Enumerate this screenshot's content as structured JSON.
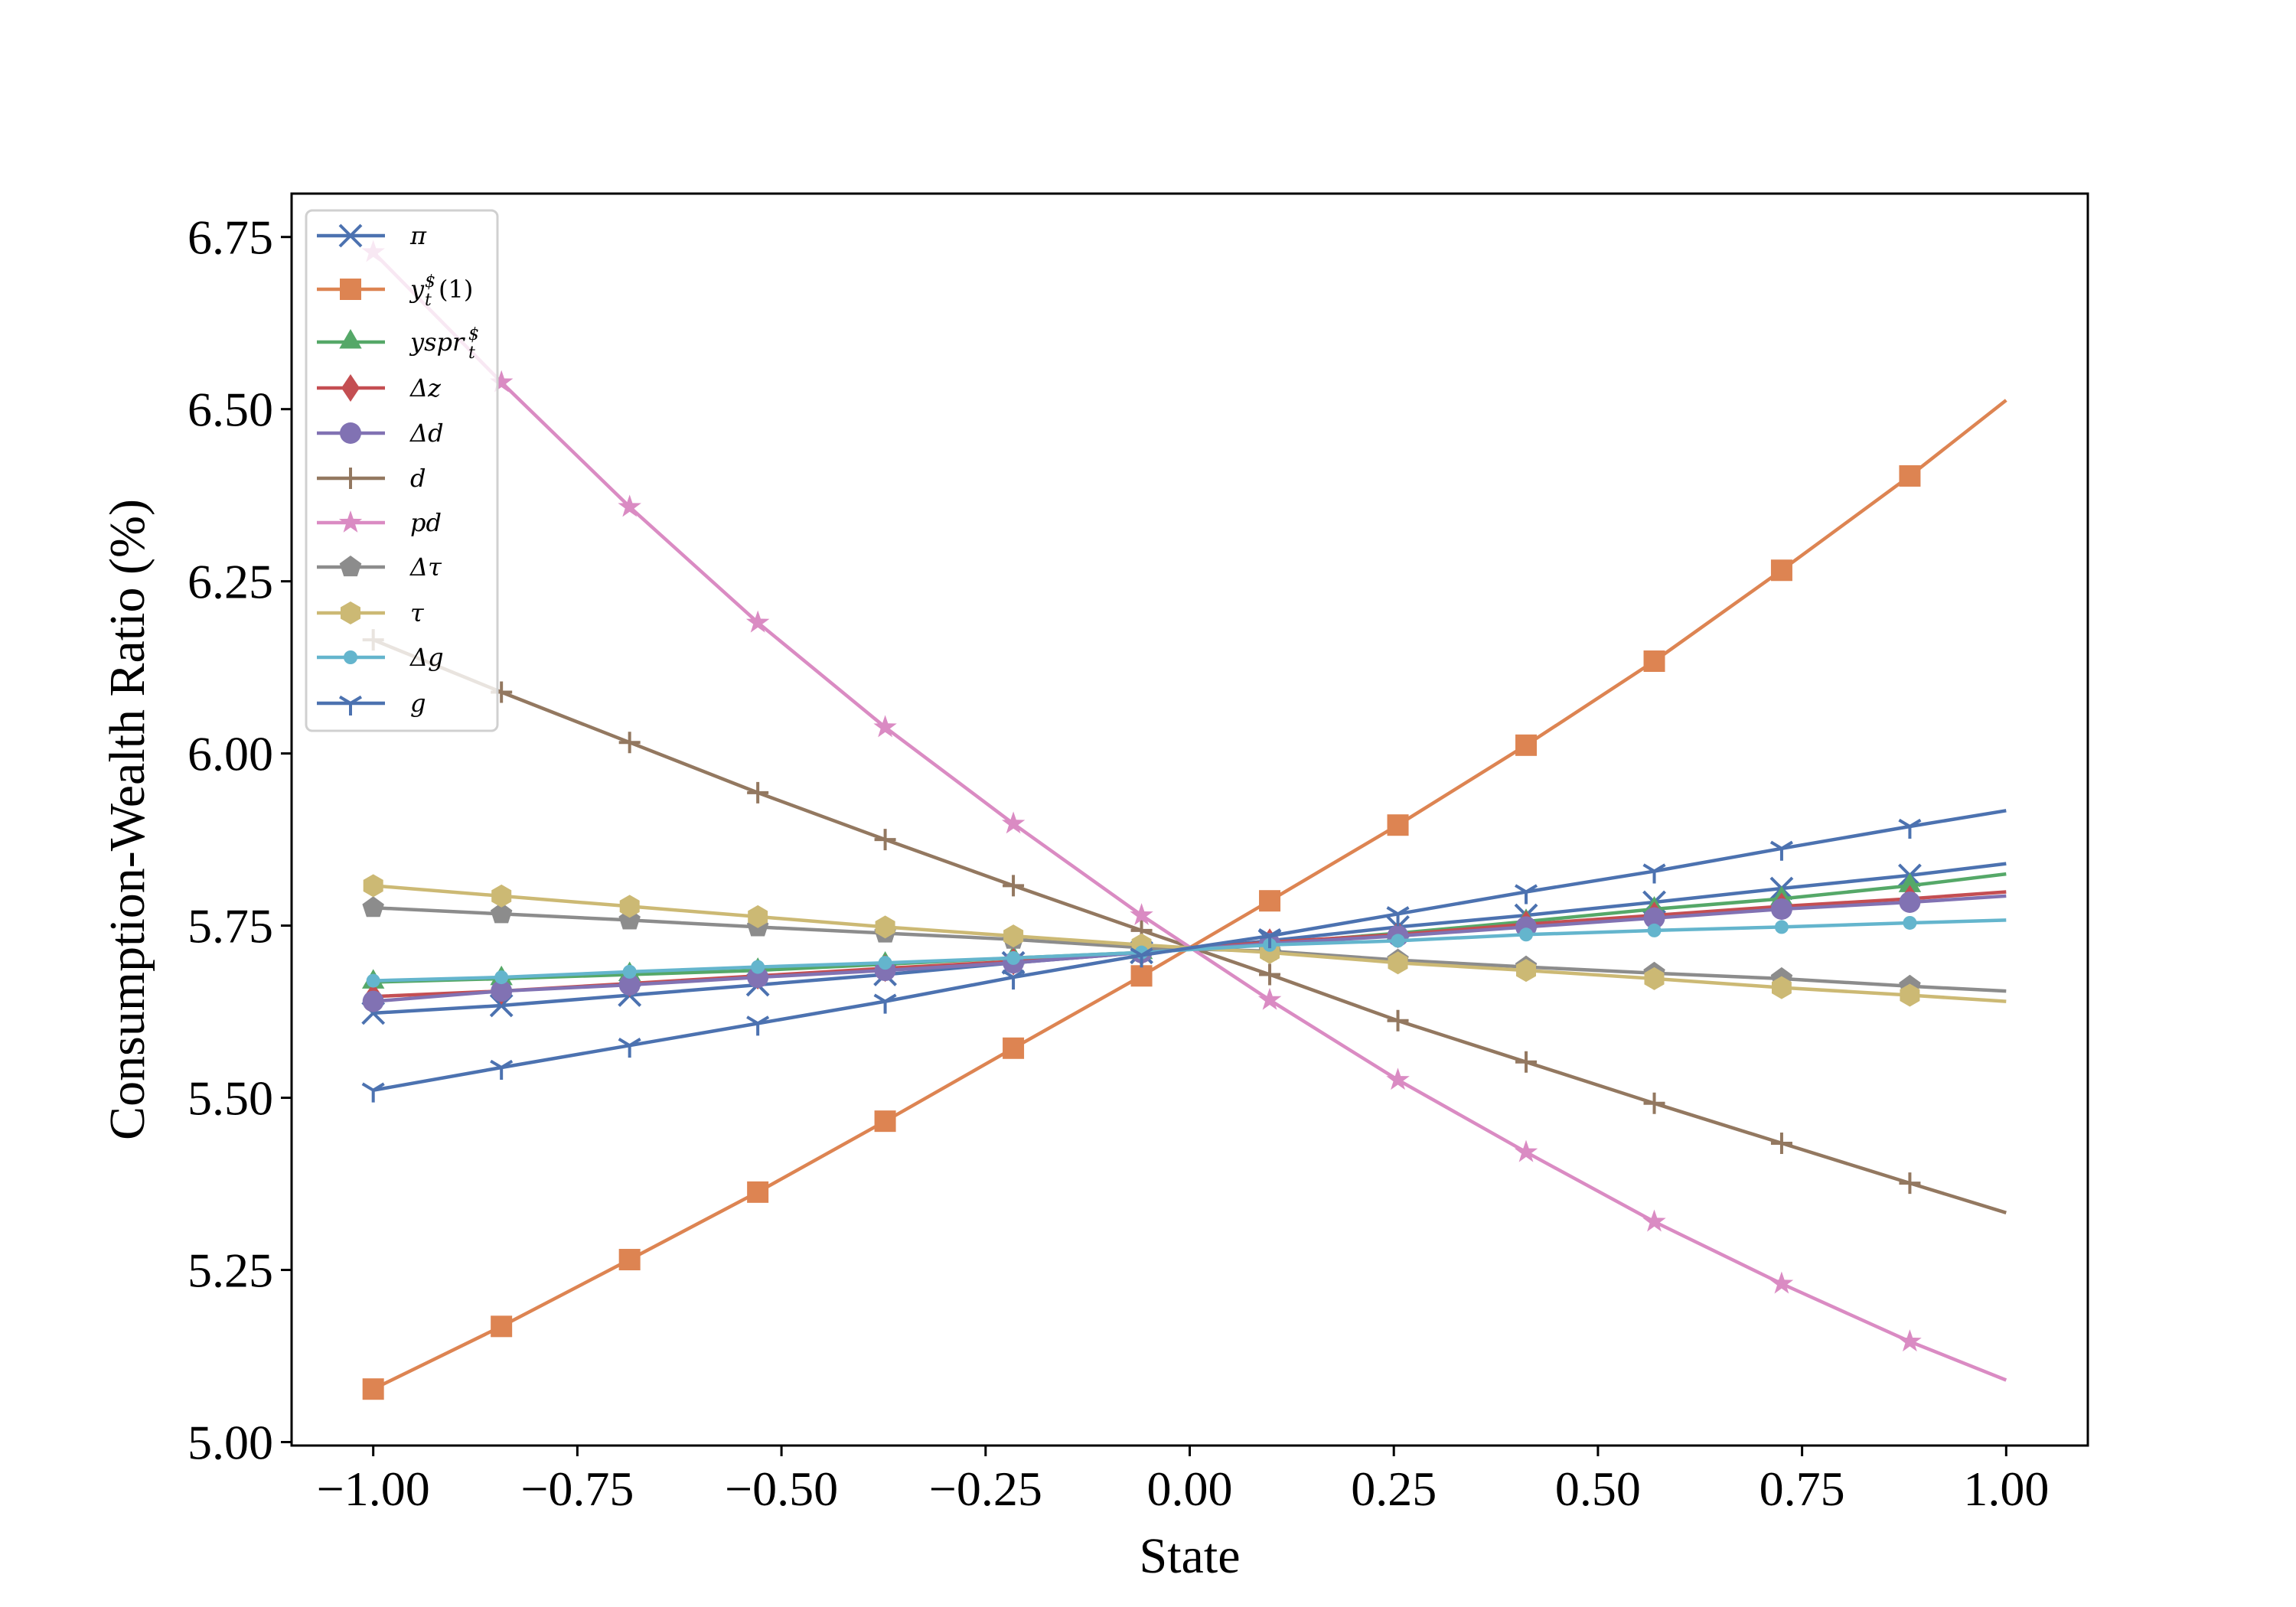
{
  "chart_data": {
    "type": "line",
    "title": "",
    "xlabel": "State",
    "ylabel": "Consumption-Wealth Ratio (%)",
    "xlim": [
      -1.1,
      1.1
    ],
    "ylim": [
      4.995,
      6.813
    ],
    "grid": false,
    "legend_position": "top-left",
    "xticks": [
      -1.0,
      -0.75,
      -0.5,
      -0.25,
      0.0,
      0.25,
      0.5,
      0.75,
      1.0
    ],
    "xtick_labels": [
      "−1.00",
      "−0.75",
      "−0.50",
      "−0.25",
      "0.00",
      "0.25",
      "0.50",
      "0.75",
      "1.00"
    ],
    "yticks": [
      5.0,
      5.25,
      5.5,
      5.75,
      6.0,
      6.25,
      6.5,
      6.75
    ],
    "ytick_labels": [
      "5.00",
      "5.25",
      "5.50",
      "5.75",
      "6.00",
      "6.25",
      "6.50",
      "6.75"
    ],
    "x": [
      -1.0,
      -0.843,
      -0.686,
      -0.529,
      -0.373,
      -0.216,
      -0.059,
      0.098,
      0.255,
      0.412,
      0.569,
      0.725,
      0.882,
      1.0
    ],
    "series": [
      {
        "name": "π",
        "label": {
          "base": "π"
        },
        "color": "#4c72b0",
        "marker": "x",
        "values": [
          5.623,
          5.634,
          5.649,
          5.664,
          5.679,
          5.696,
          5.711,
          5.728,
          5.748,
          5.765,
          5.784,
          5.804,
          5.823,
          5.84
        ]
      },
      {
        "name": "y_t^$(1)",
        "label": {
          "base": "y",
          "sub": "t",
          "sup": "$",
          "rest": "(1)"
        },
        "color": "#dd8452",
        "marker": "square",
        "values": [
          5.077,
          5.168,
          5.265,
          5.363,
          5.466,
          5.572,
          5.677,
          5.786,
          5.896,
          6.012,
          6.134,
          6.266,
          6.403,
          6.513
        ]
      },
      {
        "name": "yspr_t^$",
        "label": {
          "base": "yspr",
          "sub": "t",
          "sup": "$"
        },
        "color": "#55a868",
        "marker": "triangle",
        "values": [
          5.668,
          5.673,
          5.679,
          5.685,
          5.694,
          5.703,
          5.711,
          5.724,
          5.739,
          5.756,
          5.774,
          5.789,
          5.808,
          5.825
        ]
      },
      {
        "name": "Δz",
        "label": {
          "base": "Δz"
        },
        "color": "#c44e52",
        "marker": "diamond",
        "values": [
          5.647,
          5.655,
          5.666,
          5.677,
          5.688,
          5.698,
          5.711,
          5.726,
          5.737,
          5.752,
          5.765,
          5.778,
          5.789,
          5.799
        ]
      },
      {
        "name": "Δd",
        "label": {
          "base": "Δd"
        },
        "color": "#8172b3",
        "marker": "circle",
        "values": [
          5.64,
          5.655,
          5.664,
          5.675,
          5.685,
          5.696,
          5.711,
          5.724,
          5.735,
          5.748,
          5.761,
          5.774,
          5.784,
          5.793
        ]
      },
      {
        "name": "d",
        "label": {
          "base": "d"
        },
        "color": "#937860",
        "marker": "plus",
        "values": [
          6.165,
          6.089,
          6.016,
          5.943,
          5.875,
          5.808,
          5.743,
          5.679,
          5.612,
          5.552,
          5.492,
          5.434,
          5.376,
          5.333
        ]
      },
      {
        "name": "pd",
        "label": {
          "base": "pd"
        },
        "color": "#da8bc3",
        "marker": "star",
        "values": [
          6.728,
          6.539,
          6.358,
          6.19,
          6.038,
          5.898,
          5.765,
          5.642,
          5.526,
          5.421,
          5.32,
          5.23,
          5.146,
          5.09
        ]
      },
      {
        "name": "Δτ",
        "label": {
          "base": "Δτ"
        },
        "color": "#8c8c8c",
        "marker": "pentagon",
        "values": [
          5.776,
          5.767,
          5.758,
          5.748,
          5.739,
          5.73,
          5.718,
          5.713,
          5.7,
          5.69,
          5.681,
          5.673,
          5.662,
          5.655
        ]
      },
      {
        "name": "τ",
        "label": {
          "base": "τ"
        },
        "color": "#ccb974",
        "marker": "hexagon",
        "values": [
          5.808,
          5.793,
          5.778,
          5.763,
          5.748,
          5.735,
          5.722,
          5.711,
          5.696,
          5.685,
          5.673,
          5.66,
          5.649,
          5.64
        ]
      },
      {
        "name": "Δg",
        "label": {
          "base": "Δg"
        },
        "color": "#64b5cd",
        "marker": "point",
        "values": [
          5.67,
          5.675,
          5.683,
          5.69,
          5.696,
          5.703,
          5.711,
          5.722,
          5.728,
          5.737,
          5.743,
          5.748,
          5.754,
          5.758
        ]
      },
      {
        "name": "g",
        "label": {
          "base": "g"
        },
        "color": "#4c72b0",
        "marker": "tri_down",
        "values": [
          5.511,
          5.544,
          5.576,
          5.608,
          5.64,
          5.675,
          5.707,
          5.735,
          5.767,
          5.799,
          5.829,
          5.862,
          5.894,
          5.917
        ]
      }
    ]
  }
}
